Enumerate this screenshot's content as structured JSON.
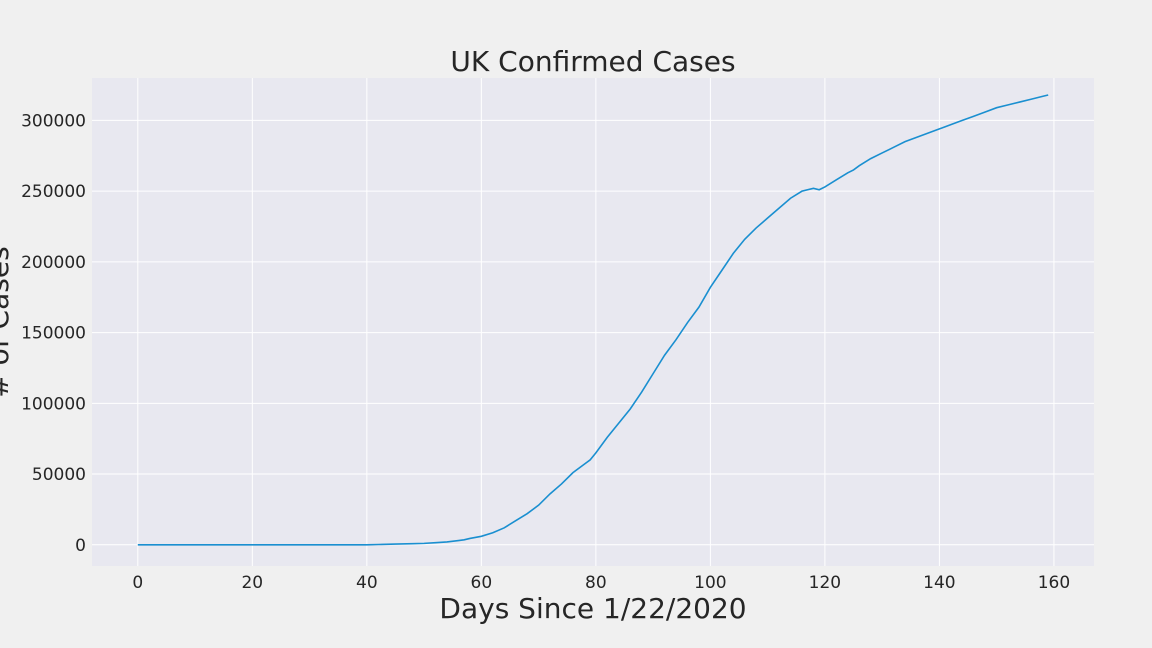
{
  "chart_data": {
    "type": "line",
    "title": "UK Confirmed Cases",
    "xlabel": "Days Since 1/22/2020",
    "ylabel": "# of Cases",
    "xlim": [
      -8,
      167
    ],
    "ylim": [
      -15000,
      330000
    ],
    "xticks": [
      0,
      20,
      40,
      60,
      80,
      100,
      120,
      140,
      160
    ],
    "xtick_labels": [
      "0",
      "20",
      "40",
      "60",
      "80",
      "100",
      "120",
      "140",
      "160"
    ],
    "yticks": [
      0,
      50000,
      100000,
      150000,
      200000,
      250000,
      300000
    ],
    "ytick_labels": [
      "0",
      "50000",
      "100000",
      "150000",
      "200000",
      "250000",
      "300000"
    ],
    "grid": true,
    "colors": {
      "background": "#f0f0f0",
      "plot_area": "#e8e8f0",
      "grid": "#ffffff",
      "line": "#1a8fd0",
      "text": "#262626"
    },
    "series": [
      {
        "x": [
          0,
          10,
          20,
          30,
          40,
          42,
          45,
          48,
          50,
          52,
          54,
          56,
          57,
          58,
          60,
          62,
          64,
          66,
          68,
          70,
          72,
          74,
          76,
          78,
          79,
          80,
          82,
          84,
          86,
          88,
          90,
          92,
          94,
          96,
          98,
          100,
          102,
          104,
          106,
          108,
          110,
          112,
          114,
          116,
          118,
          119,
          120,
          122,
          124,
          125,
          126,
          128,
          130,
          132,
          134,
          136,
          138,
          140,
          142,
          144,
          146,
          148,
          150,
          152,
          154,
          156,
          158,
          159
        ],
        "y": [
          0,
          0,
          0,
          0,
          0,
          200,
          500,
          800,
          1000,
          1500,
          2000,
          3000,
          3500,
          4500,
          6000,
          8500,
          12000,
          17000,
          22000,
          28000,
          36000,
          43000,
          51000,
          57000,
          60000,
          65000,
          76000,
          86000,
          96000,
          108000,
          121000,
          134000,
          145000,
          157000,
          168000,
          182000,
          194000,
          206000,
          216000,
          224000,
          231000,
          238000,
          245000,
          250000,
          252000,
          251000,
          253000,
          258000,
          263000,
          265000,
          268000,
          273000,
          277000,
          281000,
          285000,
          288000,
          291000,
          294000,
          297000,
          300000,
          303000,
          306000,
          309000,
          311000,
          313000,
          315000,
          317000,
          318000
        ]
      }
    ]
  }
}
